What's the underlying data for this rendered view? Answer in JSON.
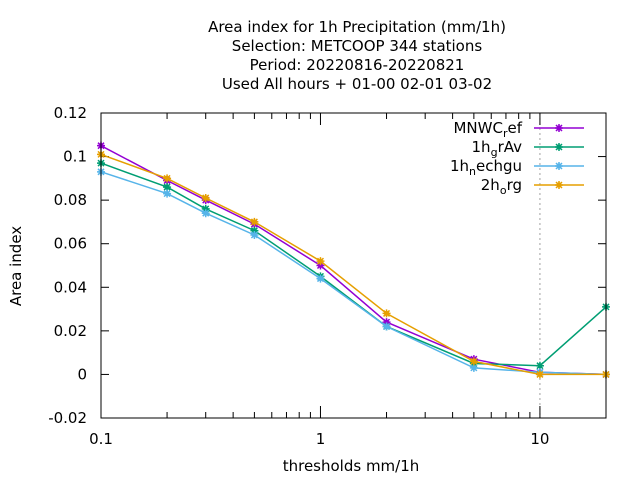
{
  "chart_data": {
    "type": "line",
    "title_lines": [
      "Area index  for 1h Precipitation (mm/1h)",
      "Selection: METCOOP    344 stations",
      "Period: 20220816-20220821",
      "Used  All hours + 01-00 02-01 03-02"
    ],
    "xlabel": "thresholds mm/1h",
    "ylabel": "Area index",
    "xscale": "log",
    "xlim": [
      0.1,
      20
    ],
    "ylim": [
      -0.02,
      0.12
    ],
    "x_ticks": [
      {
        "value": 0.1,
        "label": "0.1"
      },
      {
        "value": 1,
        "label": "1"
      },
      {
        "value": 10,
        "label": "10"
      }
    ],
    "y_ticks": [
      {
        "value": -0.02,
        "label": "-0.02"
      },
      {
        "value": 0,
        "label": "0"
      },
      {
        "value": 0.02,
        "label": "0.02"
      },
      {
        "value": 0.04,
        "label": "0.04"
      },
      {
        "value": 0.06,
        "label": "0.06"
      },
      {
        "value": 0.08,
        "label": "0.08"
      },
      {
        "value": 0.1,
        "label": "0.1"
      },
      {
        "value": 0.12,
        "label": "0.12"
      }
    ],
    "grid": "vertical dashed at x=10",
    "legend_position": "top-right",
    "x": [
      0.1,
      0.2,
      0.3,
      0.5,
      1,
      2,
      5,
      10,
      20
    ],
    "series": [
      {
        "name": "MNWC",
        "name_sub": "r",
        "name_rest": "ef",
        "color": "#9400d3",
        "values": [
          0.105,
          0.089,
          0.08,
          0.069,
          0.05,
          0.024,
          0.007,
          0.001,
          0.0
        ]
      },
      {
        "name": "1h",
        "name_sub": "g",
        "name_rest": "rAv",
        "color": "#009e73",
        "values": [
          0.097,
          0.086,
          0.076,
          0.066,
          0.045,
          0.022,
          0.005,
          0.004,
          0.031
        ]
      },
      {
        "name": "1h",
        "name_sub": "n",
        "name_rest": "echgu",
        "color": "#56b4e9",
        "values": [
          0.093,
          0.083,
          0.074,
          0.064,
          0.044,
          0.022,
          0.003,
          0.001,
          0.0
        ]
      },
      {
        "name": "2h",
        "name_sub": "o",
        "name_rest": "rg",
        "color": "#e69f00",
        "values": [
          0.101,
          0.09,
          0.081,
          0.07,
          0.052,
          0.028,
          0.006,
          0.0,
          0.0
        ]
      }
    ]
  }
}
